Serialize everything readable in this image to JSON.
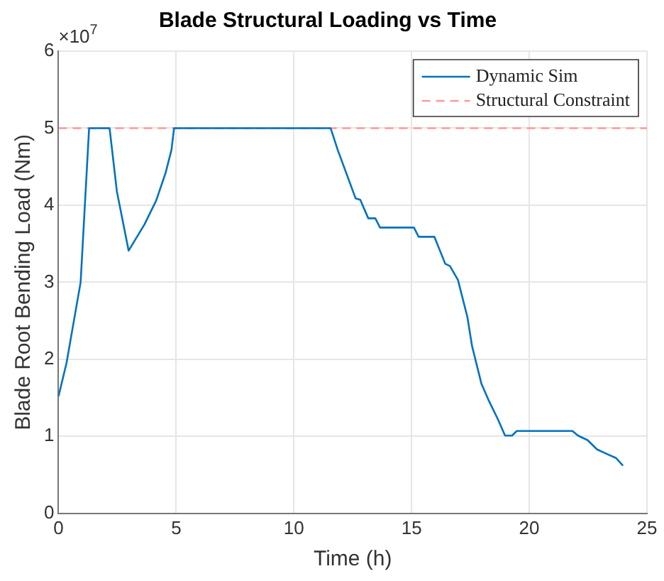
{
  "chart_data": {
    "type": "line",
    "title": "Blade Structural Loading vs Time",
    "xlabel": "Time (h)",
    "ylabel": "Blade Root Bending Load (Nm)",
    "annotations": [
      "×10$^{7}$"
    ],
    "xlim": [
      0,
      25
    ],
    "xticks": [
      0,
      5,
      10,
      15,
      20,
      25
    ],
    "ylim": [
      0,
      6
    ],
    "yticks": [
      0,
      1,
      2,
      3,
      4,
      5,
      6
    ],
    "grid": true,
    "legend": "top right",
    "marker": "none",
    "line_style": "solid",
    "series": [
      {
        "name": "Dynamic Sim",
        "color": "#0072bd",
        "x": [
          0,
          0.34,
          0.94,
          1.3,
          2.17,
          2.48,
          2.98,
          3.65,
          4.15,
          4.55,
          4.8,
          4.91,
          11.56,
          11.86,
          12.62,
          12.82,
          13.16,
          13.46,
          13.66,
          15.1,
          15.3,
          15.97,
          16.43,
          16.63,
          16.97,
          17.37,
          17.57,
          17.97,
          18.27,
          18.67,
          18.97,
          19.27,
          19.47,
          21.83,
          22.07,
          22.48,
          22.88,
          23.38,
          23.68,
          23.98
        ],
        "values": [
          1.52,
          1.95,
          3.0,
          5.0,
          5.0,
          4.18,
          3.41,
          3.75,
          4.06,
          4.42,
          4.72,
          5.0,
          5.0,
          4.72,
          4.09,
          4.07,
          3.83,
          3.83,
          3.71,
          3.71,
          3.59,
          3.59,
          3.24,
          3.21,
          3.03,
          2.55,
          2.17,
          1.68,
          1.47,
          1.22,
          1.01,
          1.01,
          1.07,
          1.07,
          1.01,
          0.95,
          0.83,
          0.76,
          0.72,
          0.62
        ]
      }
    ],
    "ref_lines": [
      {
        "axis": "y",
        "value": 5,
        "label": "Structural Constraint",
        "color": "#ff9999",
        "line_style": "dashed"
      }
    ]
  }
}
